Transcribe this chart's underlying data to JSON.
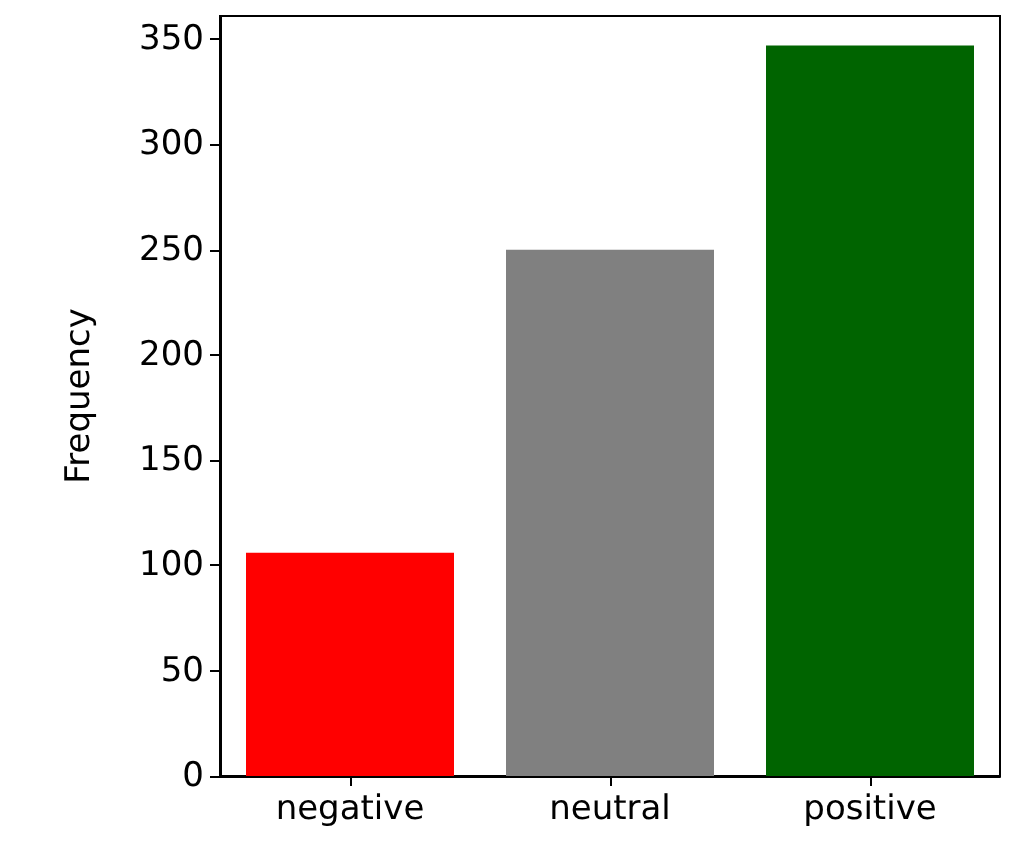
{
  "chart_data": {
    "type": "bar",
    "ylabel": "Frequency",
    "categories": [
      "negative",
      "neutral",
      "positive"
    ],
    "values": [
      106,
      250,
      347
    ],
    "colors": [
      "#ff0000",
      "#808080",
      "#006400"
    ],
    "ylim": [
      0,
      361
    ],
    "yticks": [
      0,
      50,
      100,
      150,
      200,
      250,
      300,
      350
    ],
    "grid": false
  }
}
